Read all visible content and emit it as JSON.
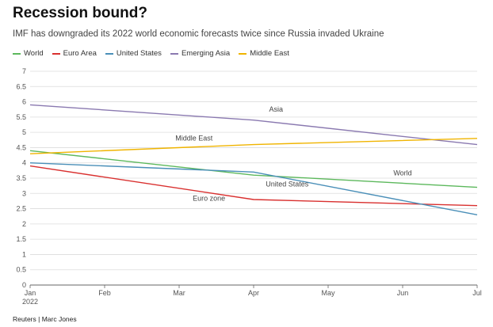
{
  "chart_data": {
    "type": "line",
    "title": "Recession bound?",
    "subtitle": "IMF has downgraded its 2022 world economic forecasts twice since Russia invaded Ukraine",
    "source": "Reuters | Marc Jones",
    "x": [
      "Jan",
      "Apr",
      "Jul"
    ],
    "x_ticks": [
      "Jan",
      "Feb",
      "Mar",
      "Apr",
      "May",
      "Jun",
      "Jul"
    ],
    "x_year_label": "2022",
    "x_month_index": [
      0,
      3,
      6
    ],
    "y_ticks": [
      0,
      0.5,
      1,
      1.5,
      2,
      2.5,
      3,
      3.5,
      4,
      4.5,
      5,
      5.5,
      6,
      6.5,
      7
    ],
    "ylim": [
      0,
      7
    ],
    "grid": true,
    "legend_position": "top-left",
    "series": [
      {
        "name": "World",
        "color": "#5cb85c",
        "values": [
          4.4,
          3.6,
          3.2
        ],
        "annotation": "World"
      },
      {
        "name": "Euro Area",
        "color": "#d9302f",
        "values": [
          3.9,
          2.8,
          2.6
        ],
        "annotation": "Euro zone"
      },
      {
        "name": "United States",
        "color": "#4a8fb8",
        "values": [
          4.0,
          3.7,
          2.3
        ],
        "annotation": "United States"
      },
      {
        "name": "Emerging Asia",
        "color": "#8a79b0",
        "values": [
          5.9,
          5.4,
          4.6
        ],
        "annotation": "Asia"
      },
      {
        "name": "Middle East",
        "color": "#f0b400",
        "values": [
          4.3,
          4.6,
          4.8
        ],
        "annotation": "Middle East"
      }
    ]
  }
}
